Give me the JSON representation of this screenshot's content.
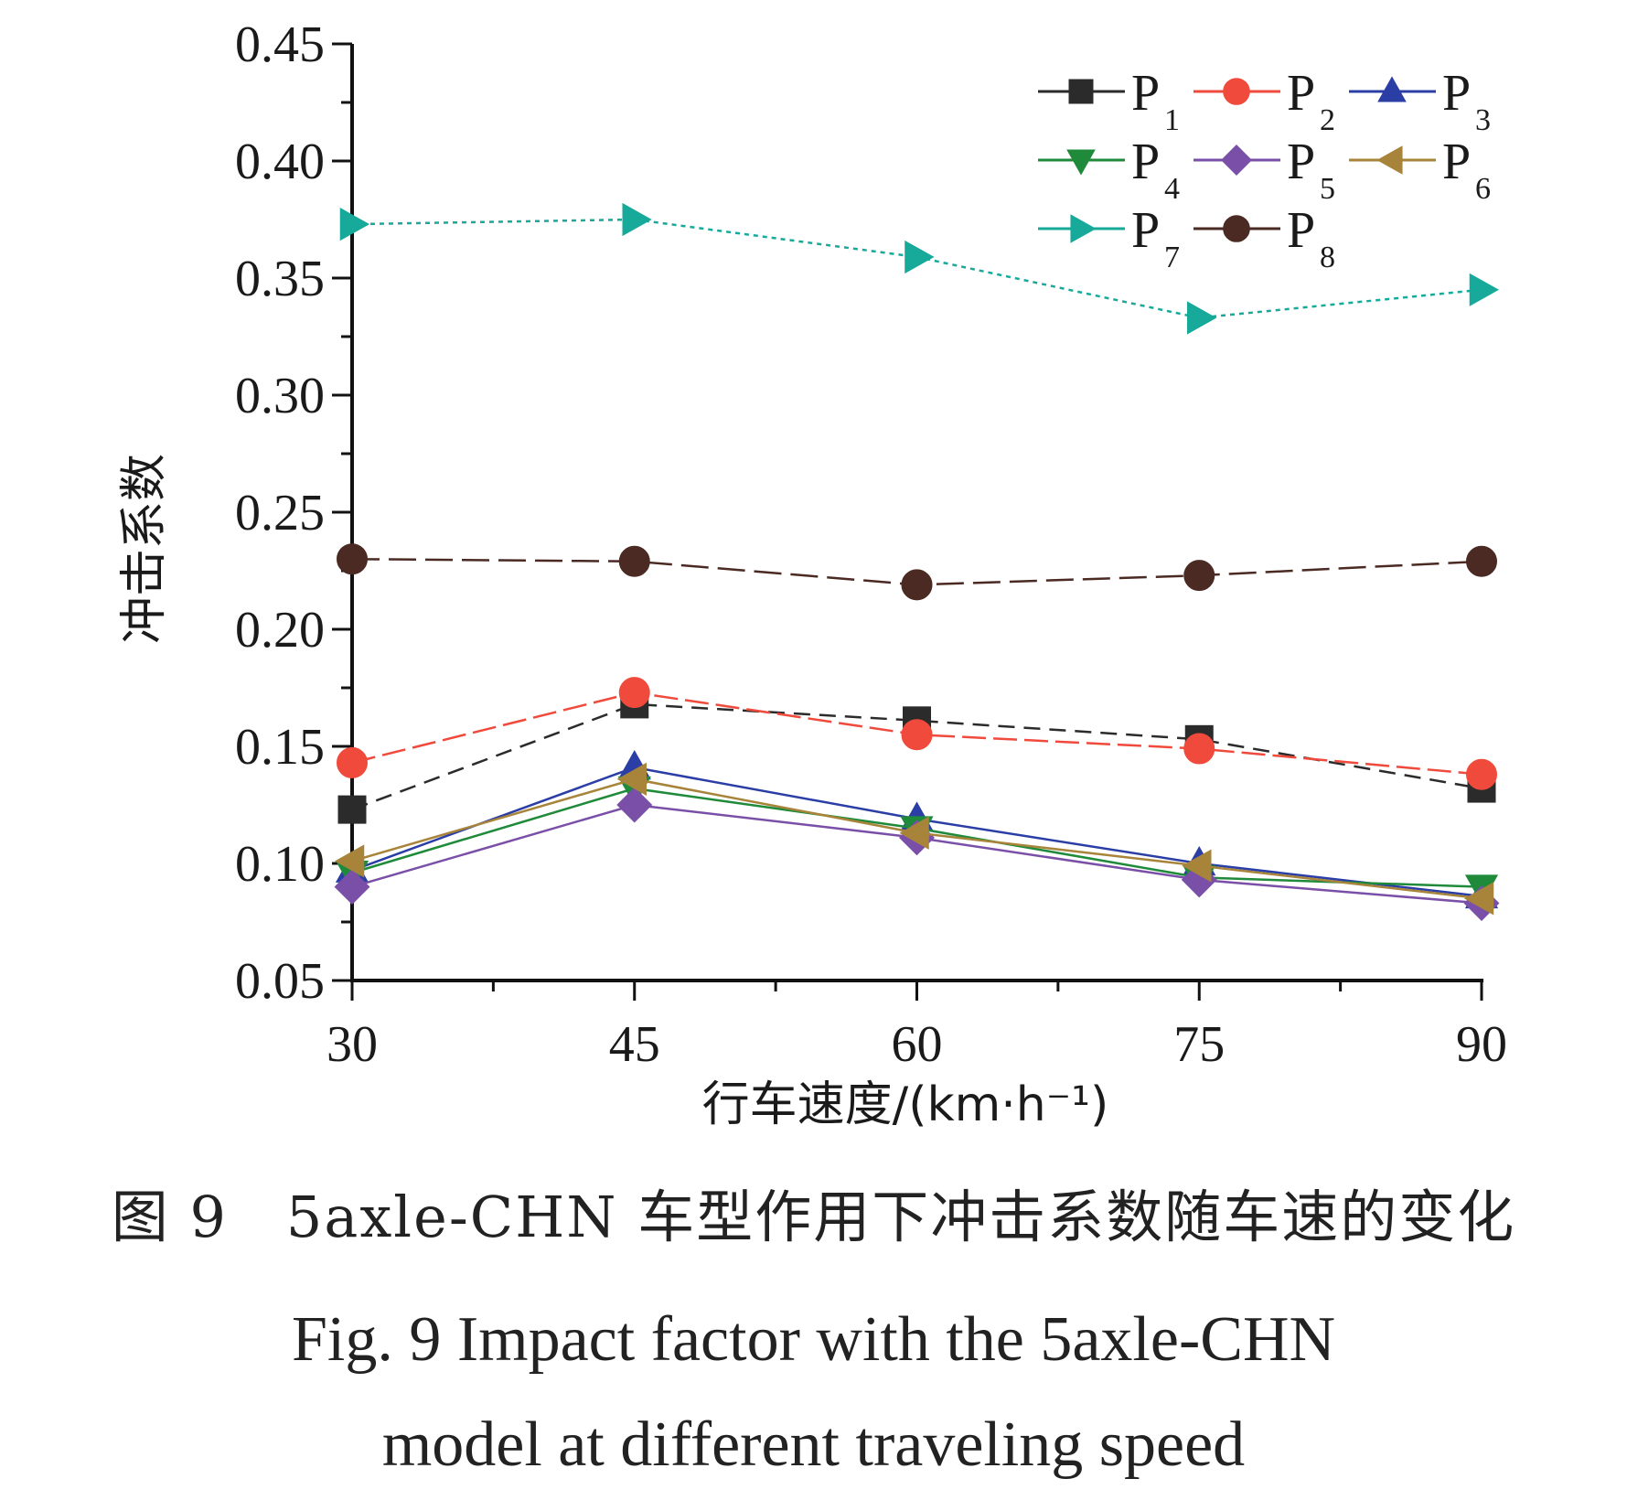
{
  "chart_data": {
    "type": "line",
    "title": "",
    "xlabel": "行车速度/(km·h⁻¹)",
    "ylabel": "冲击系数",
    "x": [
      30,
      45,
      60,
      75,
      90
    ],
    "xticks": [
      "30",
      "45",
      "60",
      "75",
      "90"
    ],
    "xlim": [
      30,
      90
    ],
    "ylim": [
      0.05,
      0.45
    ],
    "yticks": [
      "0.05",
      "0.10",
      "0.15",
      "0.20",
      "0.25",
      "0.30",
      "0.35",
      "0.40",
      "0.45"
    ],
    "grid": false,
    "legend_position": "top-right",
    "series": [
      {
        "name": "P",
        "sub": "1",
        "color": "#2b2b2b",
        "marker": "square",
        "dash": "18,10",
        "values": [
          0.123,
          0.168,
          0.161,
          0.153,
          0.132
        ]
      },
      {
        "name": "P",
        "sub": "2",
        "color": "#f04a3c",
        "marker": "circle",
        "dash": "26,8",
        "values": [
          0.143,
          0.173,
          0.155,
          0.149,
          0.138
        ]
      },
      {
        "name": "P",
        "sub": "3",
        "color": "#2a3ea6",
        "marker": "triangle-up",
        "dash": "",
        "values": [
          0.097,
          0.141,
          0.119,
          0.1,
          0.086
        ]
      },
      {
        "name": "P",
        "sub": "4",
        "color": "#1f8a3a",
        "marker": "triangle-down",
        "dash": "",
        "values": [
          0.096,
          0.132,
          0.115,
          0.094,
          0.09
        ]
      },
      {
        "name": "P",
        "sub": "5",
        "color": "#7a4fa8",
        "marker": "diamond",
        "dash": "",
        "values": [
          0.09,
          0.125,
          0.111,
          0.093,
          0.083
        ]
      },
      {
        "name": "P",
        "sub": "6",
        "color": "#a8843a",
        "marker": "triangle-left",
        "dash": "",
        "values": [
          0.101,
          0.136,
          0.113,
          0.099,
          0.085
        ]
      },
      {
        "name": "P",
        "sub": "7",
        "color": "#17a99a",
        "marker": "triangle-right",
        "dash": "5,5",
        "values": [
          0.373,
          0.375,
          0.359,
          0.333,
          0.345
        ]
      },
      {
        "name": "P",
        "sub": "8",
        "color": "#4a2a22",
        "marker": "circle",
        "dash": "30,10",
        "values": [
          0.23,
          0.229,
          0.219,
          0.223,
          0.229
        ]
      }
    ]
  },
  "caption": {
    "cn": "图 9　5axle-CHN 车型作用下冲击系数随车速的变化",
    "en_line1": "Fig. 9  Impact factor with the 5axle-CHN",
    "en_line2": "model at different traveling speed"
  }
}
